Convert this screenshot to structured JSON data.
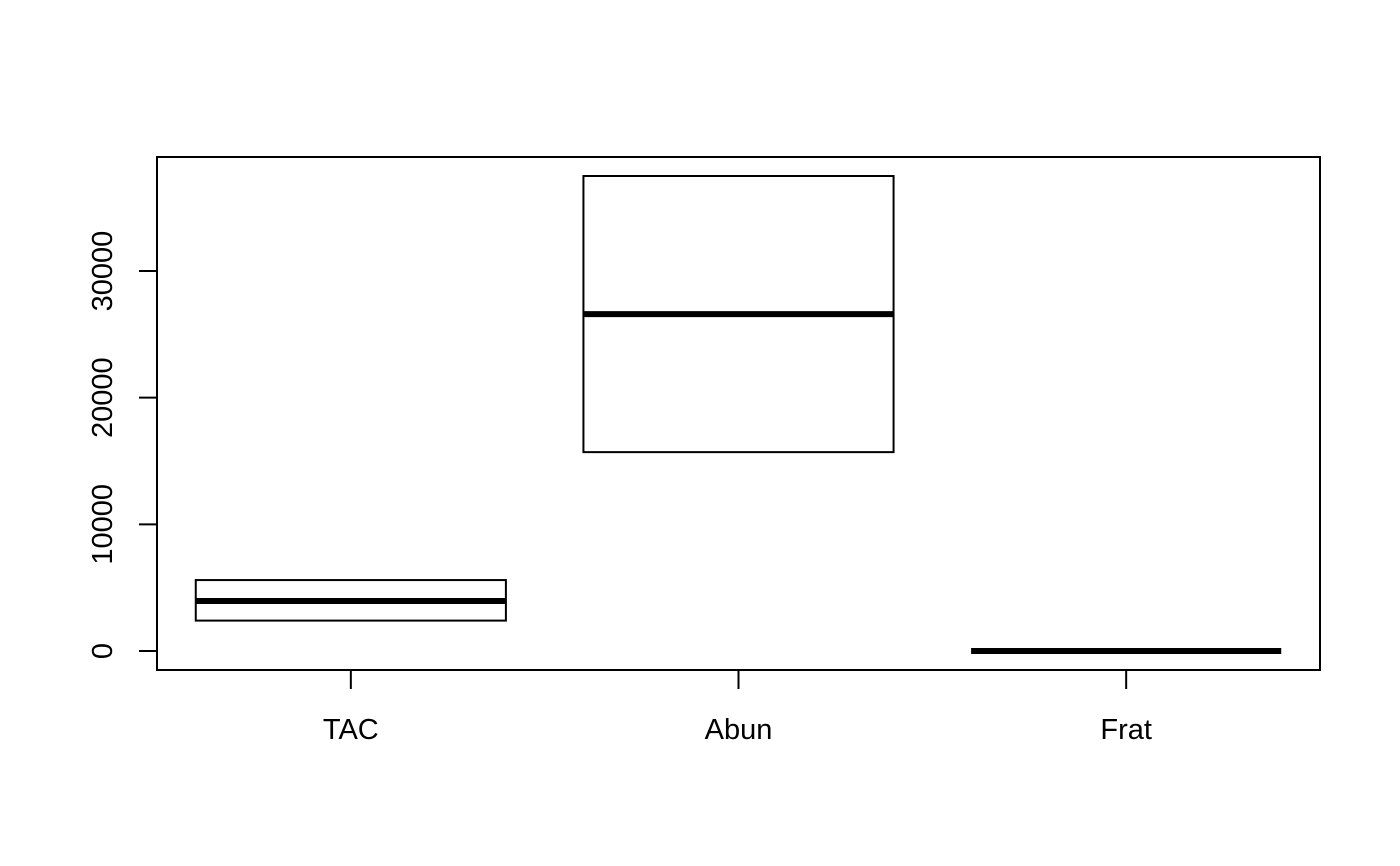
{
  "chart_data": {
    "type": "boxplot",
    "title": "",
    "xlabel": "",
    "ylabel": "",
    "categories": [
      "TAC",
      "Abun",
      "Frat"
    ],
    "boxes": [
      {
        "name": "TAC",
        "q1": 2400,
        "median": 3950,
        "q3": 5600
      },
      {
        "name": "Abun",
        "q1": 15700,
        "median": 26600,
        "q3": 37500
      },
      {
        "name": "Frat",
        "q1": 0,
        "median": 0,
        "q3": 0
      }
    ],
    "ylim": [
      -1500,
      39000
    ],
    "yticks": [
      {
        "value": 0,
        "label": "0"
      },
      {
        "value": 10000,
        "label": "10000"
      },
      {
        "value": 20000,
        "label": "20000"
      },
      {
        "value": 30000,
        "label": "30000"
      }
    ],
    "grid": false,
    "legend": "none",
    "colors": {
      "box_fill": "#ffffff",
      "stroke": "#000000"
    }
  }
}
